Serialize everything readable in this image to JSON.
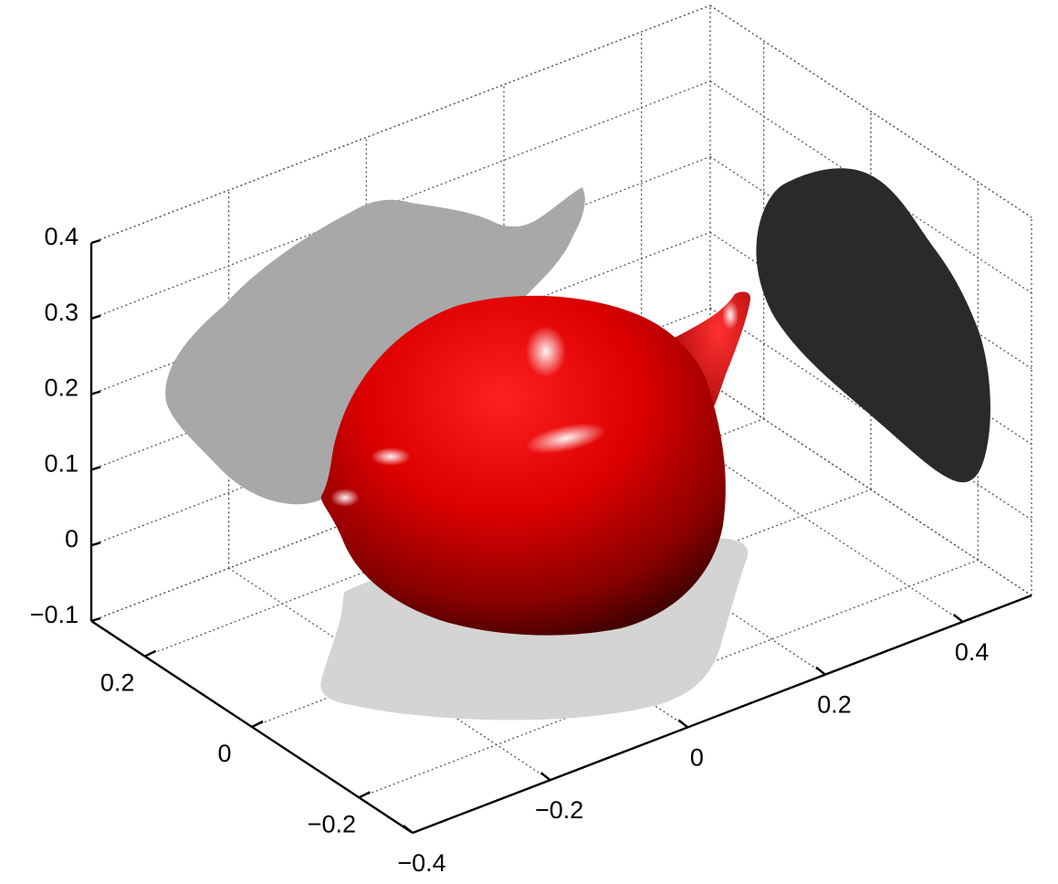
{
  "chart_data": {
    "type": "surface3d",
    "title": "",
    "xlabel": "",
    "ylabel": "",
    "zlabel": "",
    "grid": true,
    "box": "back-planes",
    "x_axis": {
      "range": [
        -0.4,
        0.5
      ],
      "ticks": [
        {
          "value": -0.4,
          "label": "−0.4"
        },
        {
          "value": -0.2,
          "label": "−0.2"
        },
        {
          "value": 0,
          "label": "0"
        },
        {
          "value": 0.2,
          "label": "0.2"
        },
        {
          "value": 0.4,
          "label": "0.4"
        }
      ]
    },
    "y_axis": {
      "range": [
        -0.3,
        0.3
      ],
      "ticks": [
        {
          "value": -0.2,
          "label": "−0.2"
        },
        {
          "value": 0,
          "label": "0"
        },
        {
          "value": 0.2,
          "label": "0.2"
        }
      ]
    },
    "z_axis": {
      "range": [
        -0.1,
        0.4
      ],
      "ticks": [
        {
          "value": -0.1,
          "label": "−0.1"
        },
        {
          "value": 0,
          "label": "0"
        },
        {
          "value": 0.1,
          "label": "0.1"
        },
        {
          "value": 0.2,
          "label": "0.2"
        },
        {
          "value": 0.3,
          "label": "0.3"
        },
        {
          "value": 0.4,
          "label": "0.4"
        }
      ]
    },
    "surface": {
      "name": "",
      "color": "#d00000",
      "shape": "3D closed blob with a spout-like protrusion"
    },
    "projections": [
      {
        "plane": "xz (back wall)",
        "color": "#a8a8a8"
      },
      {
        "plane": "yz (side wall)",
        "color": "#2a2a2a"
      },
      {
        "plane": "xy (floor)",
        "color": "#d4d4d4"
      }
    ]
  }
}
